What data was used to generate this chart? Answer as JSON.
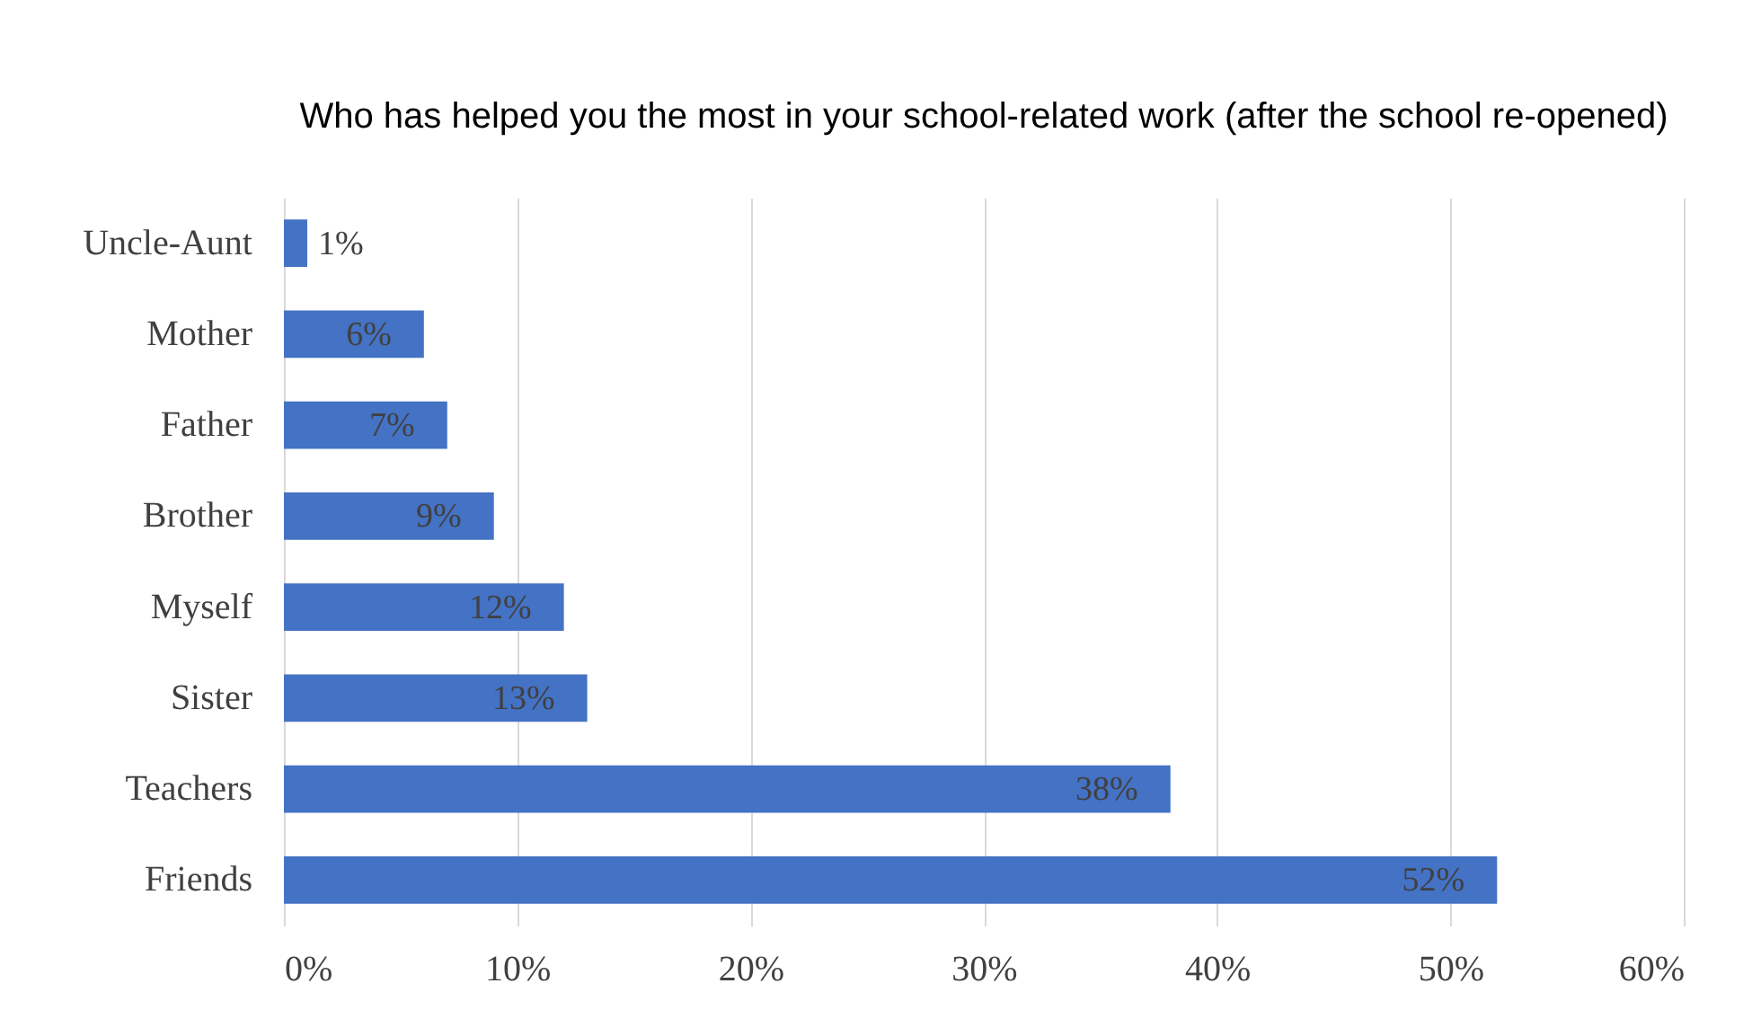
{
  "chart_data": {
    "type": "bar",
    "orientation": "horizontal",
    "title": "Who has helped you the most in your school-related work (after the school re-opened)",
    "categories": [
      "Uncle-Aunt",
      "Mother",
      "Father",
      "Brother",
      "Myself",
      "Sister",
      "Teachers",
      "Friends"
    ],
    "values": [
      1,
      6,
      7,
      9,
      12,
      13,
      38,
      52
    ],
    "color": "#4472c4",
    "data_labels": true,
    "value_labels": [
      "1%",
      "6%",
      "7%",
      "9%",
      "12%",
      "13%",
      "38%",
      "52%"
    ],
    "xlim": [
      0,
      60
    ],
    "xticks": [
      {
        "value": 0,
        "label": "0%"
      },
      {
        "value": 10,
        "label": "10%"
      },
      {
        "value": 20,
        "label": "20%"
      },
      {
        "value": 30,
        "label": "30%"
      },
      {
        "value": 40,
        "label": "40%"
      },
      {
        "value": 50,
        "label": "50%"
      },
      {
        "value": 60,
        "label": "60%"
      }
    ],
    "grid": "x"
  }
}
